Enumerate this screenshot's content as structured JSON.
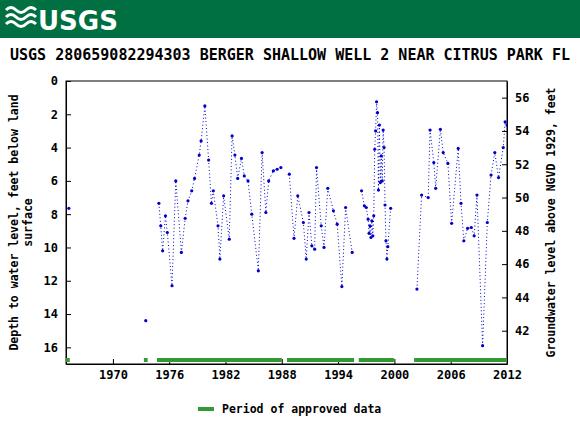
{
  "chart_data": {
    "type": "line",
    "logo_text": "USGS",
    "title": "USGS 280659082294303 BERGER SHALLOW WELL 2 NEAR CITRUS PARK FL",
    "ylabel": [
      "Depth to water level, feet below land",
      "surface"
    ],
    "y2label": "Groundwater level above NGVD 1929, feet",
    "xlim": [
      1965,
      2012
    ],
    "xticks": [
      1970,
      1976,
      1982,
      1988,
      1994,
      2000,
      2006,
      2012
    ],
    "ylim": [
      0,
      17
    ],
    "yticks": [
      0,
      2,
      4,
      6,
      8,
      10,
      12,
      14,
      16
    ],
    "y2lim": [
      40,
      57
    ],
    "y2ticks": [
      42,
      44,
      46,
      48,
      50,
      52,
      54,
      56
    ],
    "series": [
      {
        "name": "Depth to water level",
        "color": "#0000cc",
        "marker": "circle",
        "line_style": "dotted",
        "x": [
          1965.3,
          null,
          1973.5,
          null,
          1974.9,
          1975.1,
          1975.3,
          1975.6,
          1975.8,
          1976.3,
          1976.7,
          1977.3,
          1977.7,
          1978.0,
          1978.4,
          1978.7,
          1979.2,
          1979.4,
          1979.8,
          1980.2,
          1980.5,
          1980.7,
          1981.2,
          1981.4,
          1981.8,
          1982.4,
          1982.7,
          1983.0,
          1983.3,
          1983.7,
          1984.0,
          1984.4,
          1984.8,
          1985.5,
          1985.9,
          1986.3,
          1986.6,
          1987.1,
          1987.5,
          1987.9,
          null,
          1988.8,
          1989.3,
          1989.7,
          1990.3,
          1990.6,
          1990.9,
          1991.2,
          1991.5,
          1991.7,
          1992.2,
          1992.5,
          1992.9,
          1993.5,
          1993.9,
          1994.4,
          1994.8,
          1995.5,
          null,
          1996.5,
          1996.8,
          1997.0,
          1997.2,
          1997.3,
          1997.4,
          1997.5,
          1997.6,
          1997.7,
          1997.8,
          1997.9,
          1998.0,
          1998.1,
          1998.2,
          1998.3,
          1998.4,
          1998.5,
          1998.6,
          1998.7,
          1998.8,
          1998.9,
          1999.0,
          1999.1,
          1999.2,
          1999.3,
          1999.6,
          null,
          2002.4,
          2002.9,
          2003.6,
          2003.8,
          2004.2,
          2004.4,
          2004.9,
          2005.2,
          2005.7,
          2006.1,
          2006.8,
          2007.1,
          2007.4,
          2007.8,
          2008.2,
          2008.5,
          2008.8,
          2009.4,
          2009.9,
          2010.3,
          2010.7,
          2011.1,
          2011.6,
          2011.8,
          2012.0
        ],
        "values": [
          7.65,
          null,
          14.4,
          null,
          7.35,
          8.7,
          10.2,
          8.1,
          9.1,
          12.3,
          6.0,
          10.3,
          8.25,
          7.2,
          6.6,
          5.85,
          4.45,
          3.6,
          1.5,
          4.75,
          7.35,
          6.6,
          8.7,
          10.7,
          6.9,
          9.5,
          3.3,
          4.45,
          5.85,
          4.65,
          5.7,
          6.0,
          8.0,
          11.4,
          4.3,
          7.9,
          6.0,
          5.4,
          5.3,
          5.2,
          null,
          5.6,
          9.45,
          6.9,
          8.5,
          10.7,
          7.9,
          9.9,
          10.1,
          5.2,
          8.7,
          10.0,
          6.45,
          7.8,
          8.6,
          12.35,
          7.6,
          10.3,
          null,
          6.6,
          7.5,
          7.6,
          8.3,
          9.15,
          8.7,
          9.4,
          8.4,
          9.3,
          8.1,
          4.1,
          3.0,
          1.25,
          1.9,
          6.55,
          2.65,
          6.1,
          4.5,
          6.0,
          2.95,
          4.0,
          7.45,
          9.6,
          10.7,
          9.95,
          7.65,
          null,
          12.5,
          6.85,
          7.0,
          2.95,
          4.9,
          6.45,
          2.9,
          4.3,
          4.95,
          8.55,
          4.05,
          7.35,
          9.6,
          8.85,
          8.8,
          9.3,
          6.85,
          15.9,
          8.5,
          5.65,
          4.3,
          5.8,
          4.0,
          2.45,
          2.65
        ]
      }
    ],
    "approved_periods": {
      "name": "Period of approved data",
      "color": "#339933",
      "start": [
        1965.0,
        1973.3,
        1974.7,
        1988.55,
        1996.2,
        2002.1
      ],
      "end": [
        1965.4,
        1973.7,
        1988.0,
        1995.7,
        1999.95,
        2012.0
      ]
    },
    "legend": "bottom"
  }
}
